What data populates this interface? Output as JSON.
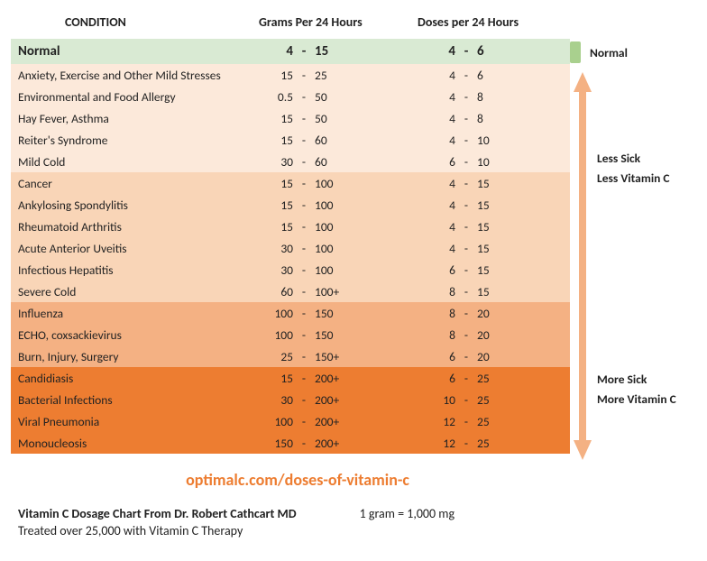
{
  "headers": {
    "condition": "CONDITION",
    "grams": "Grams Per 24 Hours",
    "doses": "Doses per 24 Hours"
  },
  "tiers": {
    "colors": [
      "#d9ead3",
      "#fce9da",
      "#f9d5b7",
      "#f4b183",
      "#ed7d31"
    ]
  },
  "rows": [
    {
      "tier": 0,
      "condition": "Normal",
      "g_lo": "4",
      "g_hi": "15",
      "d_lo": "4",
      "d_hi": "6"
    },
    {
      "tier": 1,
      "condition": "Anxiety, Exercise and Other Mild Stresses",
      "g_lo": "15",
      "g_hi": "25",
      "d_lo": "4",
      "d_hi": "6"
    },
    {
      "tier": 1,
      "condition": "Environmental and Food Allergy",
      "g_lo": "0.5",
      "g_hi": "50",
      "d_lo": "4",
      "d_hi": "8"
    },
    {
      "tier": 1,
      "condition": "Hay Fever, Asthma",
      "g_lo": "15",
      "g_hi": "50",
      "d_lo": "4",
      "d_hi": "8"
    },
    {
      "tier": 1,
      "condition": "Reiter's Syndrome",
      "g_lo": "15",
      "g_hi": "60",
      "d_lo": "4",
      "d_hi": "10"
    },
    {
      "tier": 1,
      "condition": "Mild Cold",
      "g_lo": "30",
      "g_hi": "60",
      "d_lo": "6",
      "d_hi": "10"
    },
    {
      "tier": 2,
      "condition": "Cancer",
      "g_lo": "15",
      "g_hi": "100",
      "d_lo": "4",
      "d_hi": "15"
    },
    {
      "tier": 2,
      "condition": "Ankylosing Spondylitis",
      "g_lo": "15",
      "g_hi": "100",
      "d_lo": "4",
      "d_hi": "15"
    },
    {
      "tier": 2,
      "condition": "Rheumatoid Arthritis",
      "g_lo": "15",
      "g_hi": "100",
      "d_lo": "4",
      "d_hi": "15"
    },
    {
      "tier": 2,
      "condition": "Acute Anterior Uveitis",
      "g_lo": "30",
      "g_hi": "100",
      "d_lo": "4",
      "d_hi": "15"
    },
    {
      "tier": 2,
      "condition": "Infectious Hepatitis",
      "g_lo": "30",
      "g_hi": "100",
      "d_lo": "6",
      "d_hi": "15"
    },
    {
      "tier": 2,
      "condition": "Severe Cold",
      "g_lo": "60",
      "g_hi": "100+",
      "d_lo": "8",
      "d_hi": "15"
    },
    {
      "tier": 3,
      "condition": "Influenza",
      "g_lo": "100",
      "g_hi": "150",
      "d_lo": "8",
      "d_hi": "20"
    },
    {
      "tier": 3,
      "condition": "ECHO, coxsackievirus",
      "g_lo": "100",
      "g_hi": "150",
      "d_lo": "8",
      "d_hi": "20"
    },
    {
      "tier": 3,
      "condition": "Burn, Injury, Surgery",
      "g_lo": "25",
      "g_hi": "150+",
      "d_lo": "6",
      "d_hi": "20"
    },
    {
      "tier": 4,
      "condition": "Candidiasis",
      "g_lo": "15",
      "g_hi": "200+",
      "d_lo": "6",
      "d_hi": "25"
    },
    {
      "tier": 4,
      "condition": "Bacterial Infections",
      "g_lo": "30",
      "g_hi": "200+",
      "d_lo": "10",
      "d_hi": "25"
    },
    {
      "tier": 4,
      "condition": "Viral Pneumonia",
      "g_lo": "100",
      "g_hi": "200+",
      "d_lo": "12",
      "d_hi": "25"
    },
    {
      "tier": 4,
      "condition": "Monoucleosis",
      "g_lo": "150",
      "g_hi": "200+",
      "d_lo": "12",
      "d_hi": "25"
    }
  ],
  "legend": {
    "normal": "Normal",
    "less1": "Less Sick",
    "less2": "Less Vitamin C",
    "more1": "More Sick",
    "more2": "More Vitamin C",
    "arrow_color": "#f4b183",
    "normal_swatch": "#a9d08e"
  },
  "footer": {
    "site": "optimalc.com/doses-of-vitamin-c",
    "credit_title": "Vitamin C Dosage Chart From Dr. Robert Cathcart MD",
    "credit_note": "1 gram = 1,000 mg",
    "credit_sub": "Treated over 25,000 with Vitamin C Therapy"
  }
}
